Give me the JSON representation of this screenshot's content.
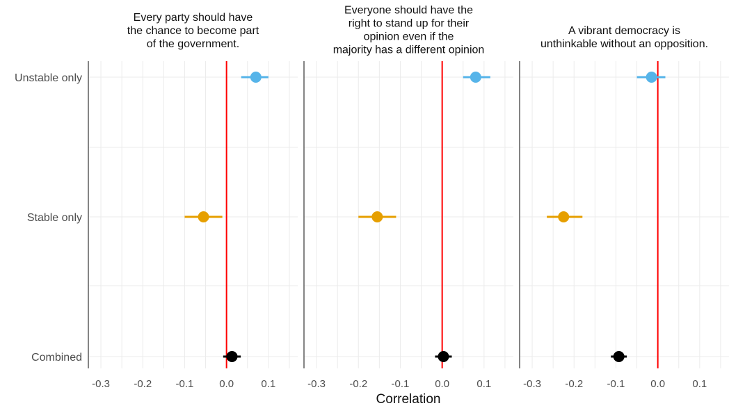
{
  "chart_data": {
    "type": "dot-errorbar",
    "xlabel": "Correlation",
    "categories": [
      "Unstable only",
      "Stable only",
      "Combined"
    ],
    "xlim": [
      -0.33,
      0.17
    ],
    "xticks": [
      -0.3,
      -0.2,
      -0.1,
      0.0,
      0.1
    ],
    "xtick_labels": [
      "-0.3",
      "-0.2",
      "-0.1",
      "0.0",
      "0.1"
    ],
    "reference_line": 0.0,
    "grid": true,
    "colors": {
      "Unstable only": "#56b4e9",
      "Stable only": "#e69f00",
      "Combined": "#000000",
      "reference_line": "#ff0000"
    },
    "panels": [
      {
        "title": [
          "Every party should have",
          "the chance to become part",
          "of the government."
        ],
        "points": [
          {
            "category": "Unstable only",
            "estimate": 0.07,
            "lower": 0.035,
            "upper": 0.1
          },
          {
            "category": "Stable only",
            "estimate": -0.055,
            "lower": -0.1,
            "upper": -0.01
          },
          {
            "category": "Combined",
            "estimate": 0.013,
            "lower": -0.008,
            "upper": 0.034
          }
        ]
      },
      {
        "title": [
          "Everyone should have the",
          "right to stand up for their",
          "opinion even if the",
          "majority has a different opinion"
        ],
        "points": [
          {
            "category": "Unstable only",
            "estimate": 0.08,
            "lower": 0.05,
            "upper": 0.115
          },
          {
            "category": "Stable only",
            "estimate": -0.155,
            "lower": -0.2,
            "upper": -0.11
          },
          {
            "category": "Combined",
            "estimate": 0.003,
            "lower": -0.017,
            "upper": 0.023
          }
        ]
      },
      {
        "title": [
          "A vibrant democracy is",
          "unthinkable without an opposition."
        ],
        "points": [
          {
            "category": "Unstable only",
            "estimate": -0.015,
            "lower": -0.05,
            "upper": 0.018
          },
          {
            "category": "Stable only",
            "estimate": -0.225,
            "lower": -0.265,
            "upper": -0.18
          },
          {
            "category": "Combined",
            "estimate": -0.093,
            "lower": -0.112,
            "upper": -0.074
          }
        ]
      }
    ]
  }
}
